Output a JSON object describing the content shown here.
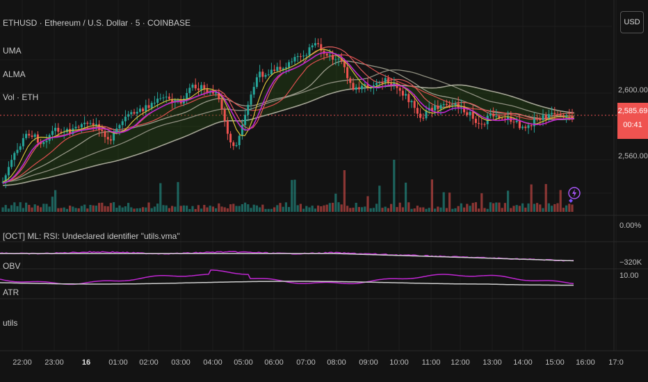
{
  "symbol_title": "ETHUSD · Ethereum / U.S. Dollar · 5 · COINBASE",
  "indicator_labels": [
    "UMA",
    "ALMA",
    "Vol · ETH"
  ],
  "pane_labels": {
    "error": "[OCT] ML: RSI: Undeclared identifier \"utils.vma\"",
    "obv": "OBV",
    "atr": "ATR",
    "utils": "utils"
  },
  "currency_button": "USD",
  "price_axis": {
    "p2600": "2,600.00",
    "p2560": "2,560.00",
    "zero_pct": "0.00%",
    "obv_val": "−320K",
    "atr_val": "10.00"
  },
  "last_price": "2,585.69",
  "countdown": "00:41",
  "time_axis": [
    "22:00",
    "23:00",
    "16",
    "01:00",
    "02:00",
    "03:00",
    "04:00",
    "05:00",
    "06:00",
    "07:00",
    "08:00",
    "09:00",
    "10:00",
    "11:00",
    "12:00",
    "13:00",
    "14:00",
    "15:00",
    "16:00",
    "17:0"
  ],
  "colors": {
    "up": "#26a69a",
    "down": "#ef5350",
    "bg": "#131313",
    "uma": "#d6c23a",
    "alma": "#c026d3",
    "ribbon": "#c9c9c9"
  },
  "icons": [
    "lightning-icon"
  ]
}
